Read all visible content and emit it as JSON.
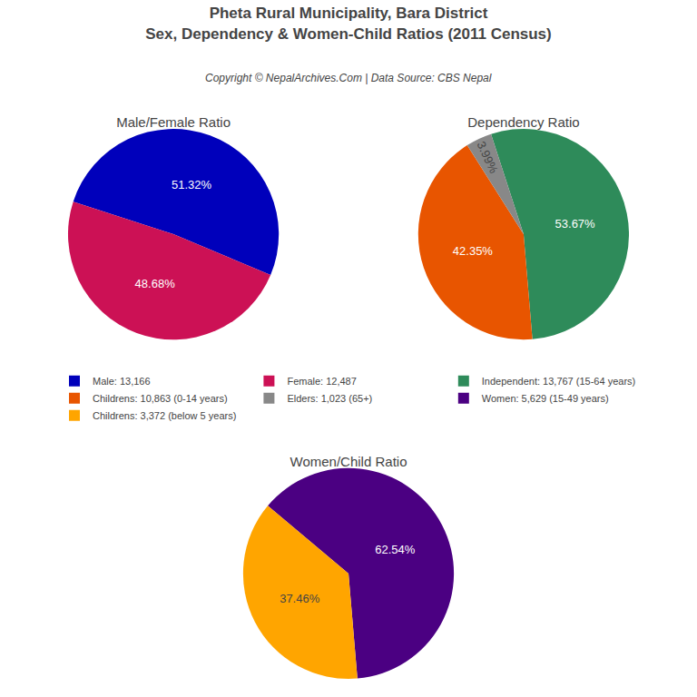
{
  "title": [
    "Pheta Rural Municipality, Bara District",
    "Sex, Dependency & Women-Child Ratios (2011 Census)"
  ],
  "subtitle": "Copyright © NepalArchives.Com | Data Source: CBS Nepal",
  "chart_data": [
    {
      "type": "pie",
      "title": "Male/Female Ratio",
      "categories": [
        "Male: 13,166",
        "Female: 12,487"
      ],
      "values": [
        51.32,
        48.68
      ],
      "value_labels": [
        "51.32%",
        "48.68%"
      ],
      "colors": [
        "#0000BB",
        "#CC1155"
      ],
      "data_labels": true
    },
    {
      "type": "pie",
      "title": "Dependency Ratio",
      "categories": [
        "Independent: 13,767 (15-64 years)",
        "Childrens: 10,863 (0-14 years)",
        "Elders: 1,023 (65+)"
      ],
      "values": [
        53.67,
        42.35,
        3.99
      ],
      "value_labels": [
        "53.67%",
        "42.35%",
        "3.99%"
      ],
      "colors": [
        "#2E8B5A",
        "#E85500",
        "#888888"
      ],
      "data_labels": true
    },
    {
      "type": "pie",
      "title": "Women/Child Ratio",
      "categories": [
        "Women: 5,629 (15-49 years)",
        "Childrens: 3,372 (below 5 years)"
      ],
      "values": [
        62.54,
        37.46
      ],
      "value_labels": [
        "62.54%",
        "37.46%"
      ],
      "colors": [
        "#4B0082",
        "#FFA500"
      ],
      "data_labels": true
    }
  ]
}
